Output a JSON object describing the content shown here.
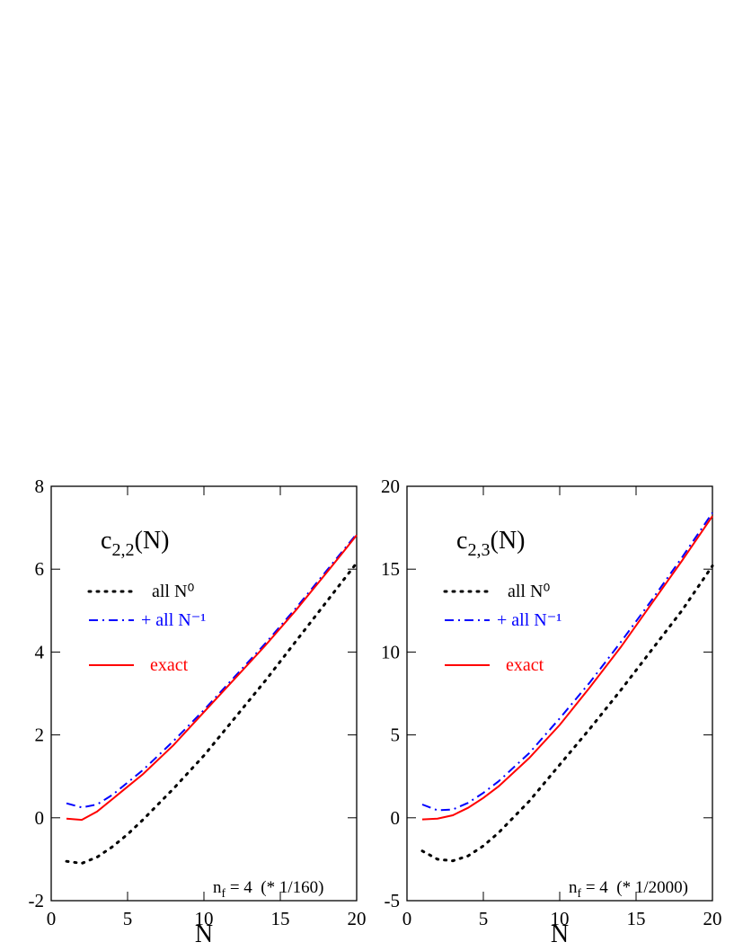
{
  "chart_data": [
    {
      "type": "line",
      "title": [
        "c",
        "2,2",
        "(N)"
      ],
      "annotation": [
        "n",
        "f",
        " = 4  (* 1/160)"
      ],
      "xlabel": "N",
      "x": [
        1,
        2,
        3,
        4,
        5,
        6,
        8,
        10,
        12,
        14,
        16,
        18,
        20
      ],
      "series": [
        {
          "name": "all N⁰",
          "color": "#000000",
          "style": "dotted",
          "values": [
            -1.05,
            -1.1,
            -0.95,
            -0.7,
            -0.4,
            -0.05,
            0.7,
            1.5,
            2.4,
            3.3,
            4.25,
            5.2,
            6.15
          ]
        },
        {
          "name": "+ all N⁻¹",
          "color": "#0000ff",
          "style": "dashdot",
          "values": [
            0.35,
            0.25,
            0.32,
            0.55,
            0.85,
            1.15,
            1.85,
            2.6,
            3.4,
            4.2,
            5.05,
            5.95,
            6.85
          ]
        },
        {
          "name": "exact",
          "color": "#ff0000",
          "style": "solid",
          "values": [
            -0.02,
            -0.05,
            0.15,
            0.45,
            0.75,
            1.05,
            1.75,
            2.55,
            3.35,
            4.15,
            5.0,
            5.9,
            6.82
          ]
        }
      ],
      "xlim": [
        0,
        20
      ],
      "xticks": [
        0,
        5,
        10,
        15,
        20
      ],
      "ylim": [
        -2,
        8
      ],
      "yticks": [
        -2,
        0,
        2,
        4,
        6,
        8
      ]
    },
    {
      "type": "line",
      "title": [
        "c",
        "2,3",
        "(N)"
      ],
      "annotation": [
        "n",
        "f",
        " = 4  (* 1/2000)"
      ],
      "xlabel": "N",
      "x": [
        1,
        2,
        3,
        4,
        5,
        6,
        8,
        10,
        12,
        14,
        16,
        18,
        20
      ],
      "series": [
        {
          "name": "all N⁰",
          "color": "#000000",
          "style": "dotted",
          "values": [
            -2.0,
            -2.5,
            -2.6,
            -2.3,
            -1.7,
            -0.9,
            1.0,
            3.2,
            5.4,
            7.7,
            10.1,
            12.5,
            15.2
          ]
        },
        {
          "name": "+ all N⁻¹",
          "color": "#0000ff",
          "style": "dashdot",
          "values": [
            0.8,
            0.45,
            0.5,
            0.9,
            1.5,
            2.2,
            3.9,
            6.0,
            8.2,
            10.6,
            13.1,
            15.7,
            18.4
          ]
        },
        {
          "name": "exact",
          "color": "#ff0000",
          "style": "solid",
          "values": [
            -0.1,
            -0.05,
            0.15,
            0.6,
            1.2,
            1.9,
            3.6,
            5.6,
            7.9,
            10.3,
            12.9,
            15.5,
            18.2
          ]
        }
      ],
      "xlim": [
        0,
        20
      ],
      "xticks": [
        0,
        5,
        10,
        15,
        20
      ],
      "ylim": [
        -5,
        20
      ],
      "yticks": [
        -5,
        0,
        5,
        10,
        15,
        20
      ]
    }
  ]
}
